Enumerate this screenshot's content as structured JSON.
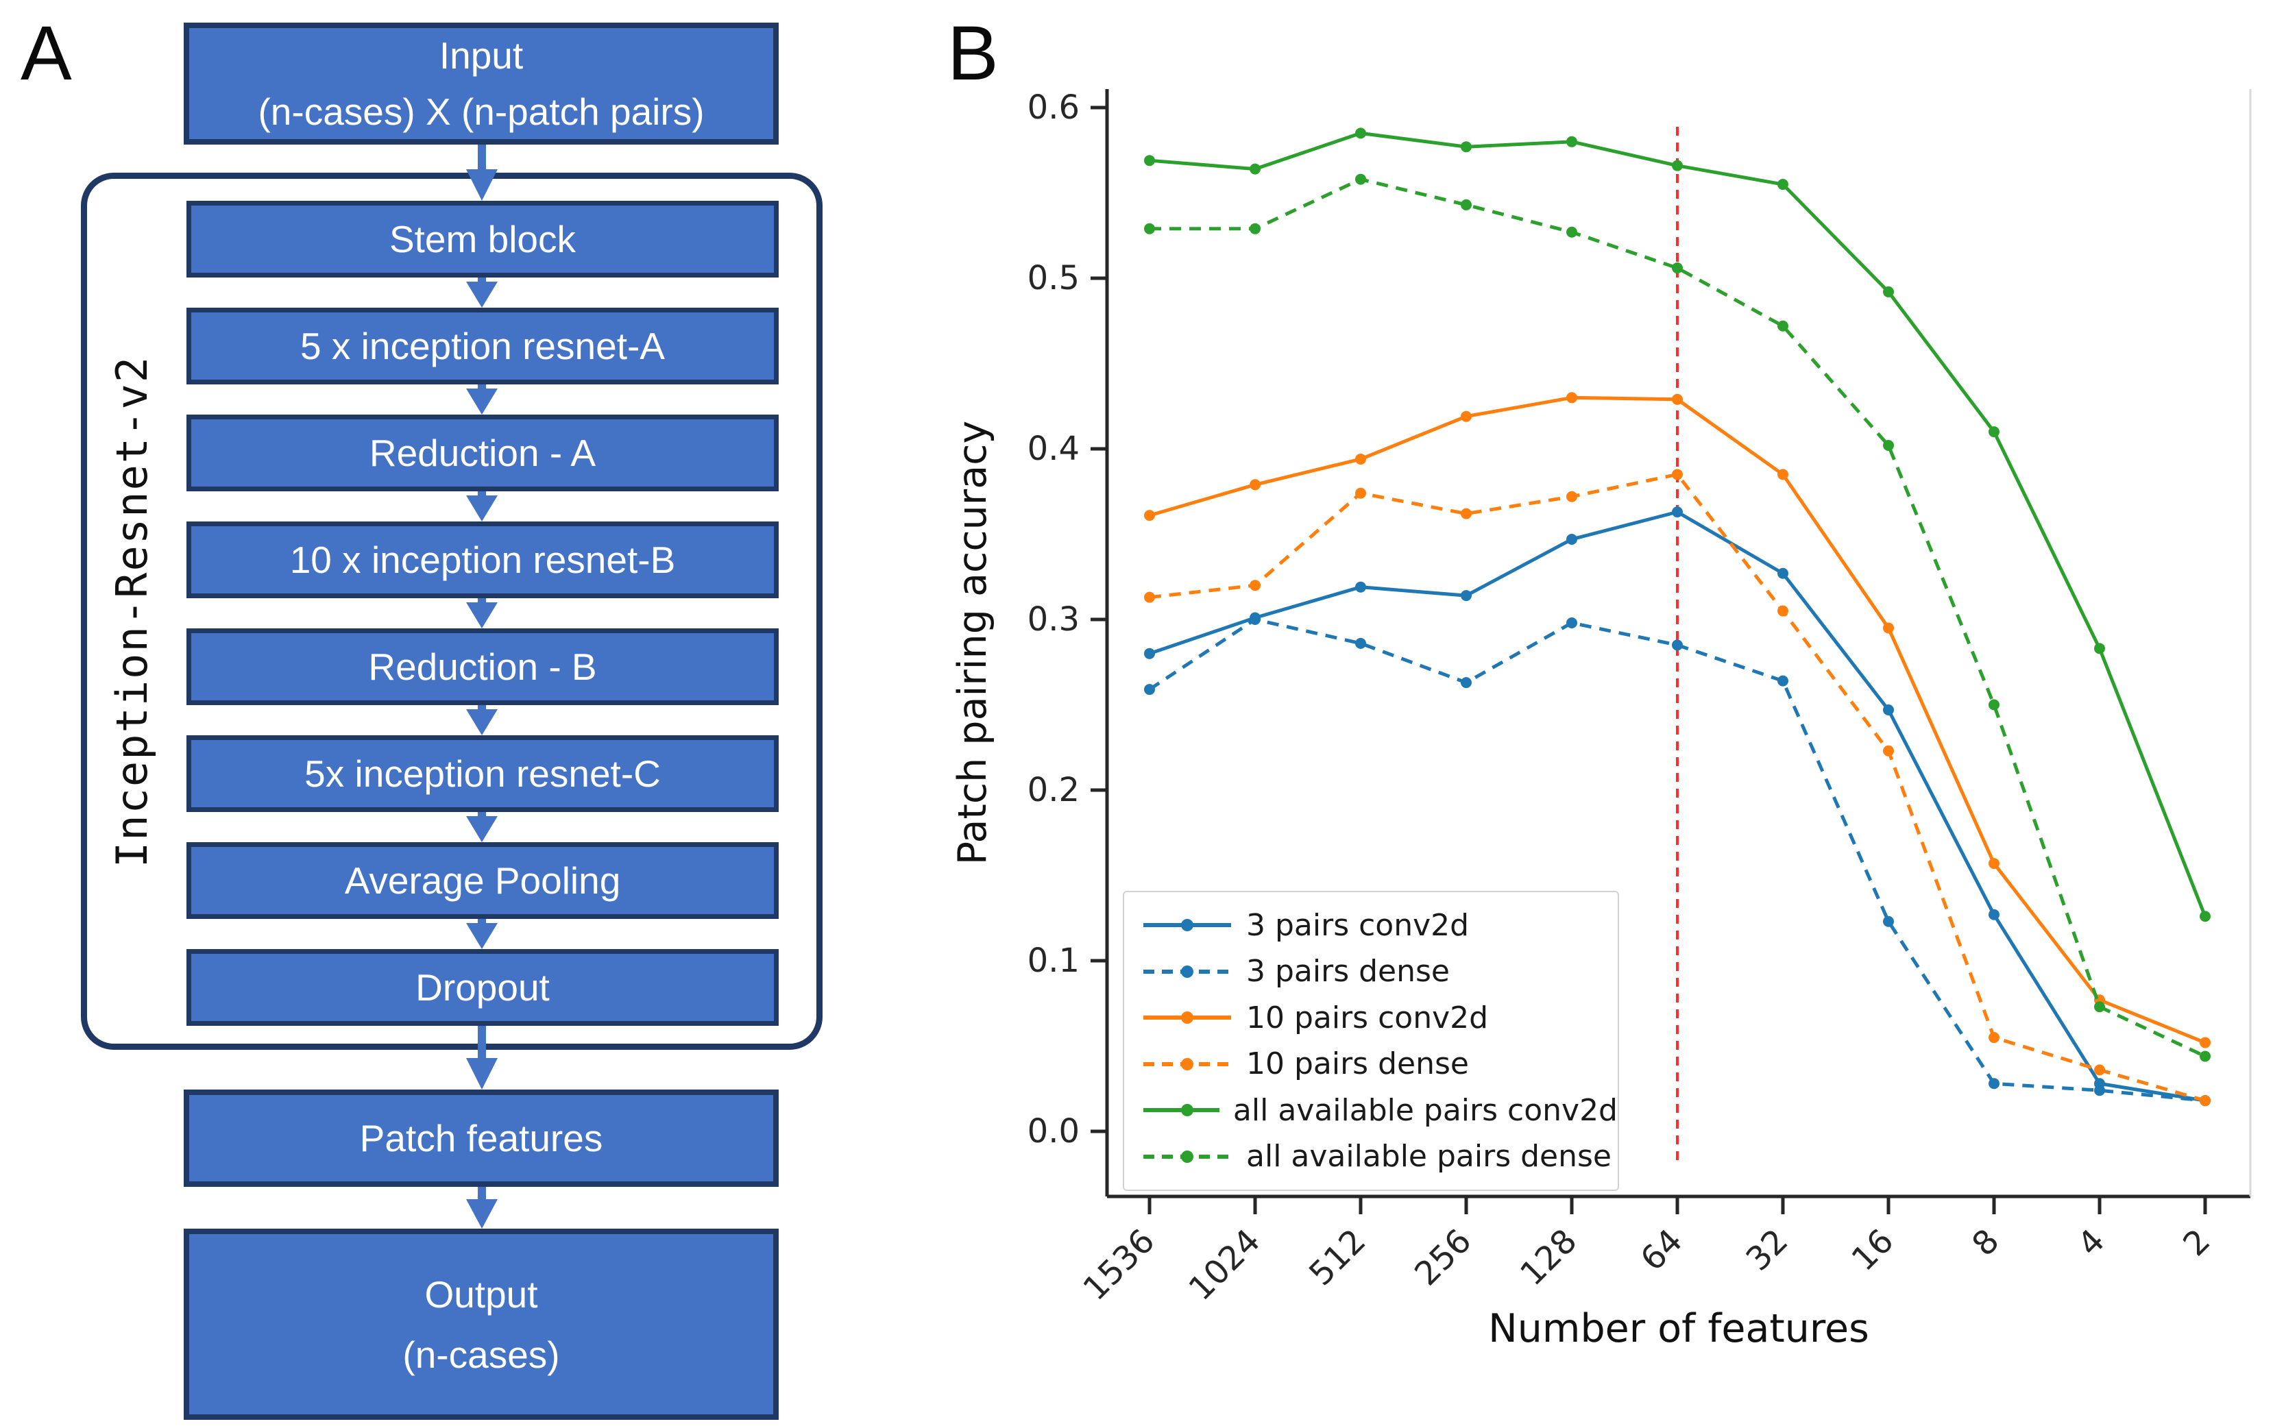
{
  "panels": {
    "a_label": "A",
    "b_label": "B"
  },
  "flowchart": {
    "input_block": {
      "line1": "Input",
      "line2": "(n-cases) X (n-patch pairs)"
    },
    "container_label": "Inception-Resnet-v2",
    "blocks": [
      {
        "label": "Stem block"
      },
      {
        "label": "5 x inception resnet-A"
      },
      {
        "label": "Reduction - A"
      },
      {
        "label": "10 x inception resnet-B"
      },
      {
        "label": "Reduction - B"
      },
      {
        "label": "5x inception resnet-C"
      },
      {
        "label": "Average Pooling"
      },
      {
        "label": "Dropout"
      }
    ],
    "patch_features_label": "Patch features",
    "output_block": {
      "line1": "Output",
      "line2": "(n-cases)"
    },
    "colors": {
      "box_fill": "#4472c4",
      "box_border": "#1f3864",
      "arrow": "#4472c4"
    }
  },
  "chart_data": {
    "type": "line",
    "title": "",
    "xlabel": "Number of features",
    "ylabel": "Patch pairing accuracy",
    "categories": [
      "1536",
      "1024",
      "512",
      "256",
      "128",
      "64",
      "32",
      "16",
      "8",
      "4",
      "2"
    ],
    "yticks": [
      "0.0",
      "0.1",
      "0.2",
      "0.3",
      "0.4",
      "0.5",
      "0.6"
    ],
    "ylim": [
      -0.04,
      0.61
    ],
    "grid": false,
    "legend_position": "lower left",
    "vline": {
      "x_category": "64",
      "color": "#ff2d2d",
      "style": "dashed"
    },
    "series": [
      {
        "name": "3 pairs conv2d",
        "color": "#1f77b4",
        "dash": false,
        "values": [
          0.28,
          0.301,
          0.319,
          0.314,
          0.347,
          0.363,
          0.327,
          0.247,
          0.127,
          0.028,
          0.018
        ]
      },
      {
        "name": "3 pairs dense",
        "color": "#1f77b4",
        "dash": true,
        "values": [
          0.259,
          0.3,
          0.286,
          0.263,
          0.298,
          0.285,
          0.264,
          0.123,
          0.028,
          0.024,
          0.018
        ]
      },
      {
        "name": "10 pairs conv2d",
        "color": "#ff7f0e",
        "dash": false,
        "values": [
          0.361,
          0.379,
          0.394,
          0.419,
          0.43,
          0.429,
          0.385,
          0.295,
          0.157,
          0.077,
          0.052
        ]
      },
      {
        "name": "10 pairs dense",
        "color": "#ff7f0e",
        "dash": true,
        "values": [
          0.313,
          0.32,
          0.374,
          0.362,
          0.372,
          0.385,
          0.305,
          0.223,
          0.055,
          0.036,
          0.018
        ]
      },
      {
        "name": "all available pairs conv2d",
        "color": "#2ca02c",
        "dash": false,
        "values": [
          0.569,
          0.564,
          0.585,
          0.577,
          0.58,
          0.566,
          0.555,
          0.492,
          0.41,
          0.283,
          0.126
        ]
      },
      {
        "name": "all available pairs dense",
        "color": "#2ca02c",
        "dash": true,
        "values": [
          0.529,
          0.529,
          0.558,
          0.543,
          0.527,
          0.506,
          0.472,
          0.402,
          0.25,
          0.073,
          0.044
        ]
      }
    ]
  }
}
